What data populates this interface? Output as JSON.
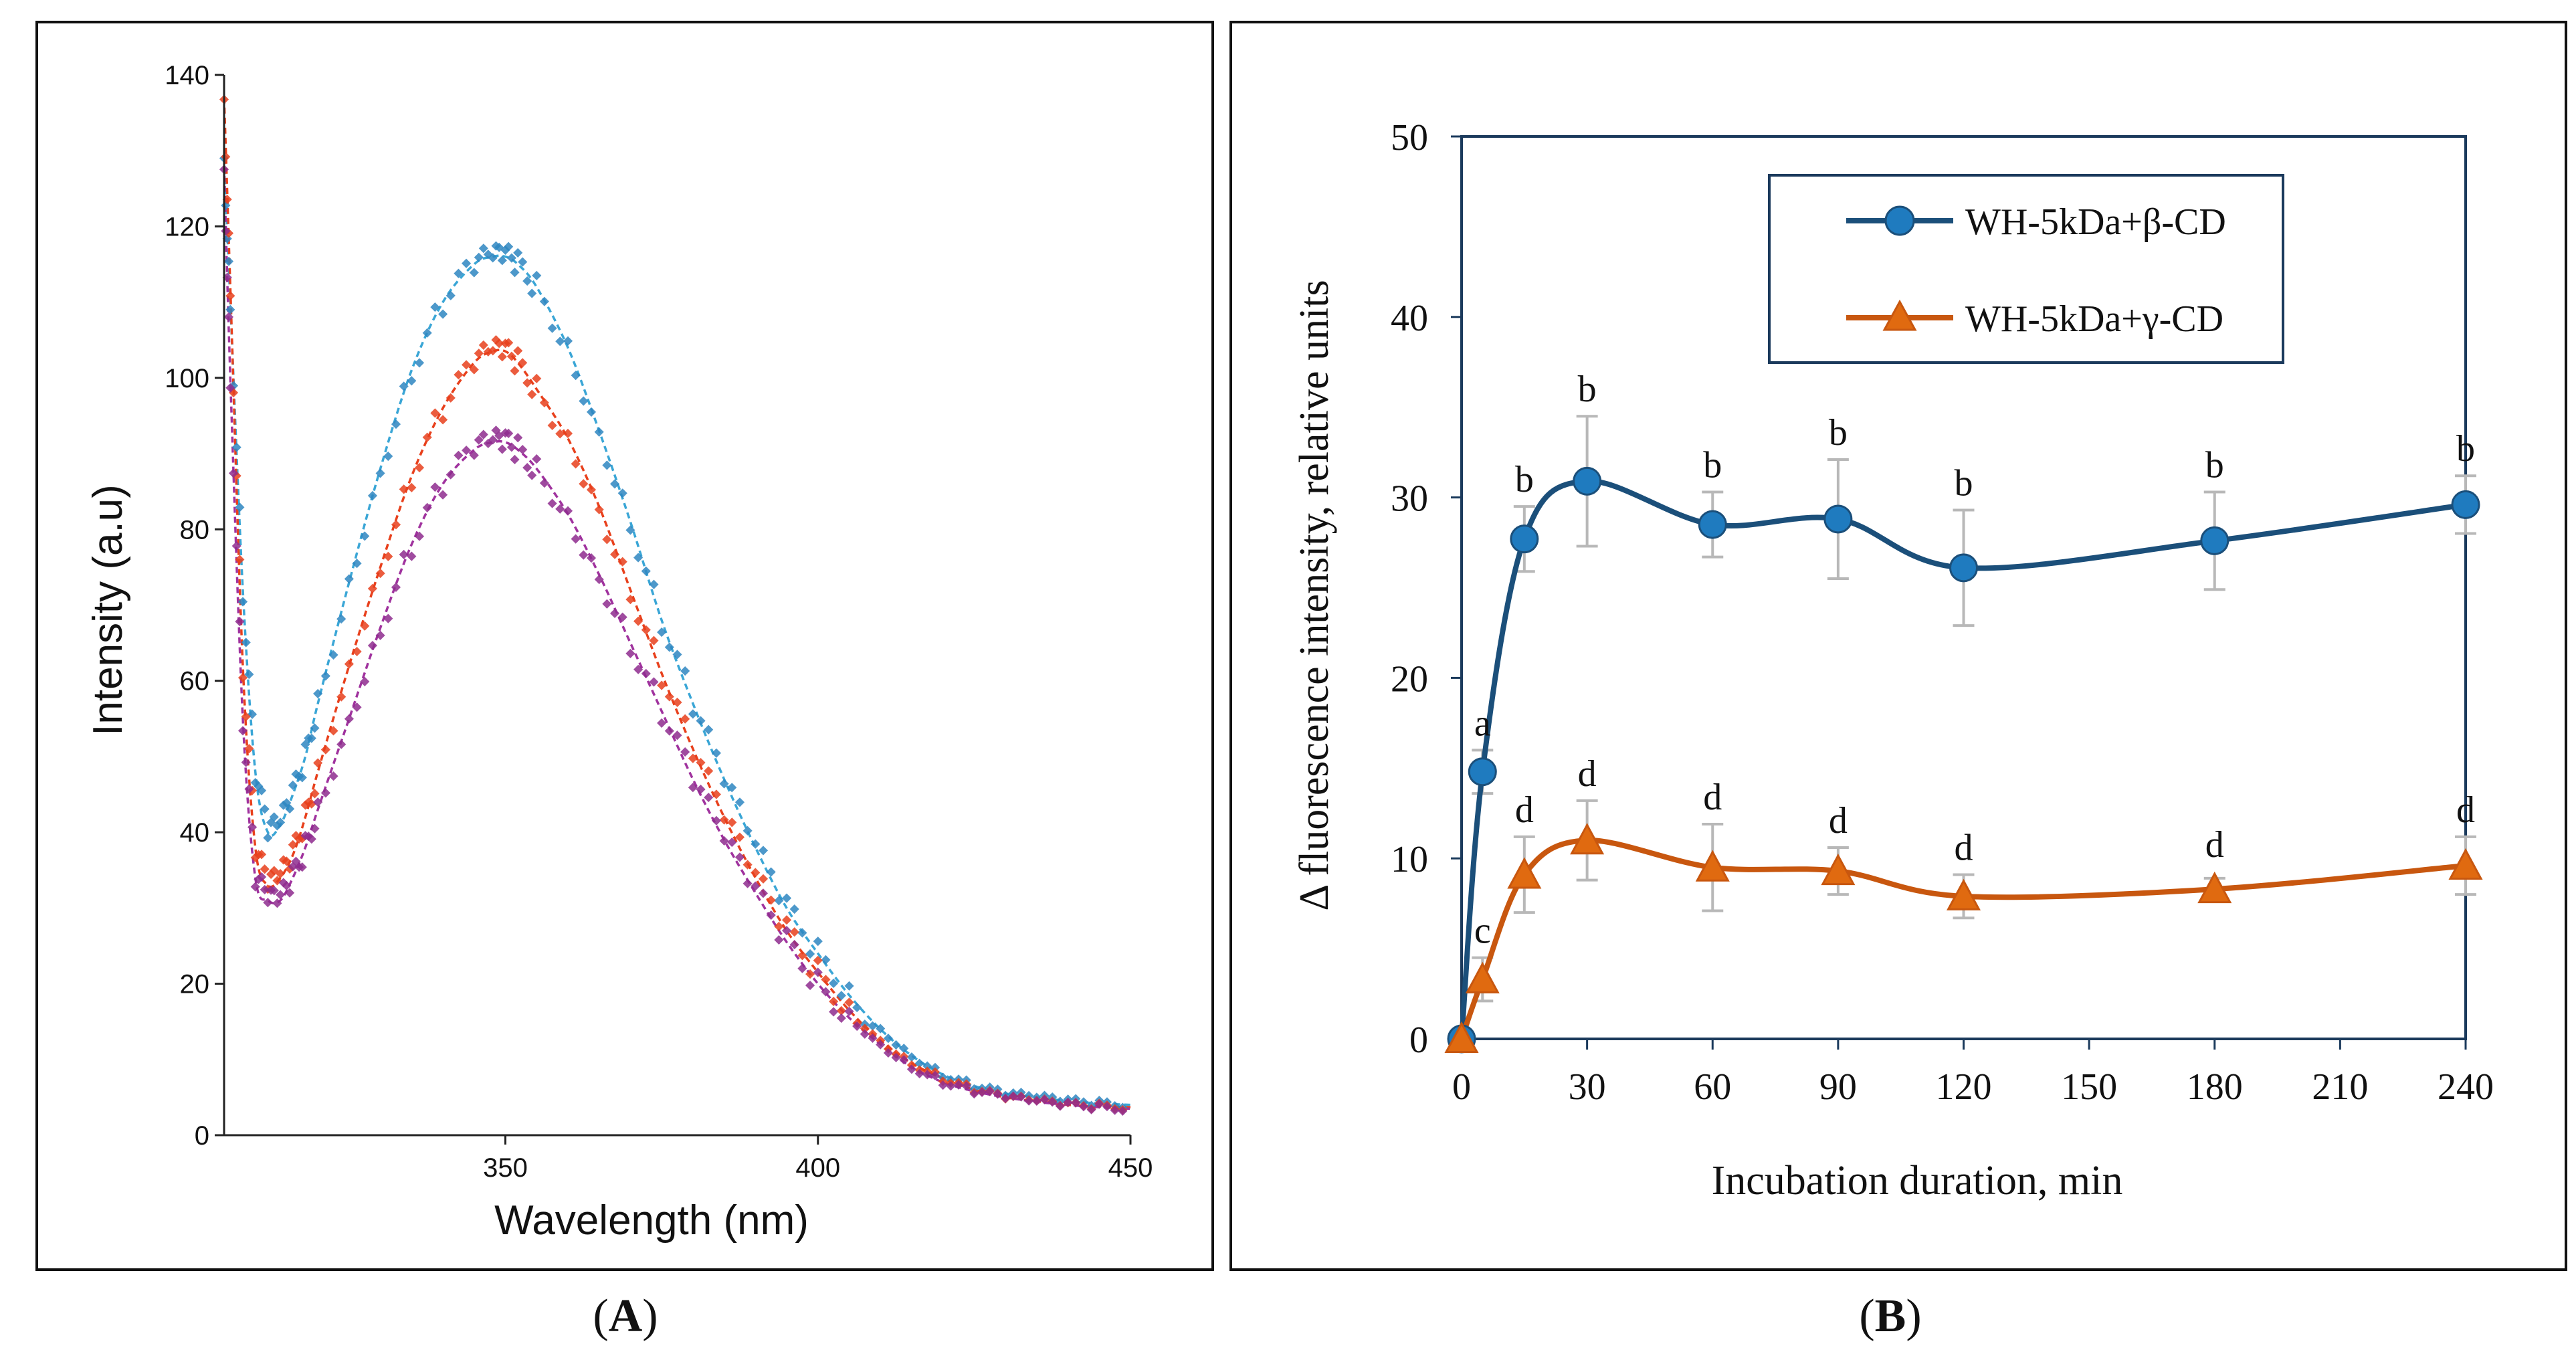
{
  "chart_data": [
    {
      "id": "A",
      "type": "scatter",
      "caption": "(A)",
      "caption_letter": "A",
      "xlabel": "Wavelength (nm)",
      "ylabel": "Intensity (a.u)",
      "xlim": [
        305,
        450
      ],
      "ylim": [
        0,
        140
      ],
      "xticks": [
        350,
        400,
        450
      ],
      "yticks": [
        0,
        20,
        40,
        60,
        80,
        100,
        120,
        140
      ],
      "series": [
        {
          "name": "blue",
          "color": "#2e86c1",
          "fit_color": "#3aa6d6",
          "x": [
            305,
            306,
            308,
            310,
            312,
            314,
            316,
            318,
            320,
            325,
            330,
            335,
            340,
            345,
            348,
            350,
            352,
            355,
            360,
            365,
            370,
            375,
            380,
            385,
            390,
            395,
            400,
            405,
            410,
            415,
            420,
            425,
            430,
            435,
            440,
            445,
            450
          ],
          "y": [
            129,
            110,
            72,
            48,
            40,
            41,
            45,
            50,
            57,
            73,
            88,
            101,
            110,
            115,
            116,
            116,
            115,
            112,
            104,
            93,
            81,
            68,
            57,
            47,
            38,
            30,
            24,
            18.5,
            14,
            10.5,
            8,
            6.5,
            5.5,
            5,
            4.5,
            4.2,
            4
          ]
        },
        {
          "name": "red",
          "color": "#e8401c",
          "fit_color": "#e8401c",
          "x": [
            305,
            306,
            308,
            310,
            312,
            314,
            316,
            318,
            320,
            325,
            330,
            335,
            340,
            345,
            348,
            350,
            352,
            355,
            360,
            365,
            370,
            375,
            380,
            385,
            390,
            395,
            400,
            405,
            410,
            415,
            420,
            425,
            430,
            435,
            440,
            445,
            450
          ],
          "y": [
            137,
            112,
            62,
            38,
            33,
            34,
            37,
            42,
            48,
            62,
            75,
            87,
            96,
            102,
            103.5,
            103.5,
            102,
            98.5,
            92,
            83,
            72,
            61,
            51,
            42,
            34,
            27,
            21.5,
            16.5,
            12.5,
            9.5,
            7.5,
            6,
            5,
            4.5,
            4,
            3.8,
            3.7
          ]
        },
        {
          "name": "purple",
          "color": "#8e2c8e",
          "fit_color": "#a0329e",
          "x": [
            305,
            306,
            308,
            310,
            312,
            314,
            316,
            318,
            320,
            325,
            330,
            335,
            340,
            345,
            348,
            350,
            352,
            355,
            360,
            365,
            370,
            375,
            380,
            385,
            390,
            395,
            400,
            405,
            410,
            415,
            420,
            425,
            430,
            435,
            440,
            445,
            450
          ],
          "y": [
            128,
            100,
            55,
            34,
            31,
            31,
            34,
            38,
            43,
            55,
            67,
            78,
            86,
            90.5,
            91.5,
            91.5,
            90.5,
            88,
            82,
            74,
            65,
            56,
            47,
            39,
            32,
            25.5,
            20,
            15.5,
            12,
            9,
            7,
            5.8,
            5,
            4.4,
            4,
            3.7,
            3.5
          ]
        }
      ]
    },
    {
      "id": "B",
      "type": "line",
      "caption": "(B)",
      "caption_letter": "B",
      "xlabel": "Incubation duration, min",
      "ylabel": "Δ fluorescence intensity, relative units",
      "xlim": [
        0,
        240
      ],
      "ylim": [
        0,
        50
      ],
      "xticks": [
        0,
        30,
        60,
        90,
        120,
        150,
        180,
        210,
        240
      ],
      "yticks": [
        0,
        10,
        20,
        30,
        40,
        50
      ],
      "legend_position": "top-right",
      "series": [
        {
          "name": "WH-5kDa+β-CD",
          "marker": "circle",
          "color": "#1b4f7a",
          "marker_color": "#1f7bbf",
          "x": [
            0,
            5,
            15,
            30,
            60,
            90,
            120,
            180,
            240
          ],
          "y": [
            0,
            14.8,
            27.7,
            30.9,
            28.5,
            28.8,
            26.1,
            27.6,
            29.6
          ],
          "error": [
            0,
            1.2,
            1.8,
            3.6,
            1.8,
            3.3,
            3.2,
            2.7,
            1.6
          ],
          "letters": [
            "",
            "a",
            "b",
            "b",
            "b",
            "b",
            "b",
            "b",
            "b"
          ]
        },
        {
          "name": "WH-5kDa+γ-CD",
          "marker": "triangle",
          "color": "#c8570f",
          "marker_color": "#e06a10",
          "x": [
            0,
            5,
            15,
            30,
            60,
            90,
            120,
            180,
            240
          ],
          "y": [
            0,
            3.3,
            9.1,
            11.0,
            9.5,
            9.3,
            7.9,
            8.3,
            9.6
          ],
          "error": [
            0,
            1.2,
            2.1,
            2.2,
            2.4,
            1.3,
            1.2,
            0.6,
            1.6
          ],
          "letters": [
            "",
            "c",
            "d",
            "d",
            "d",
            "d",
            "d",
            "d",
            "d"
          ]
        }
      ]
    }
  ]
}
